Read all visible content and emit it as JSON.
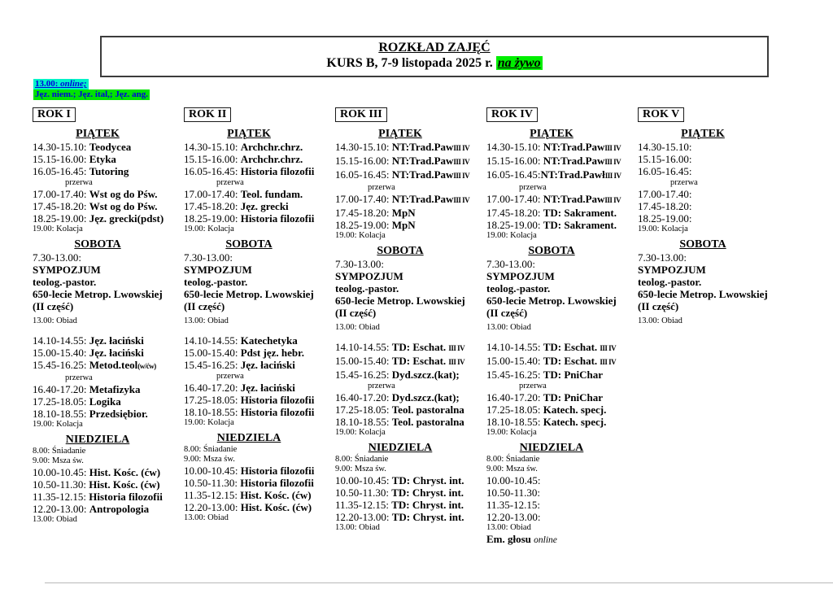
{
  "header": {
    "title": "ROZKŁAD ZAJĘĆ",
    "subtitle": "KURS B, 7-9 listopada 2025 r. ",
    "live_label": "na żywo"
  },
  "note": {
    "time": "13.00: ",
    "online": "online;",
    "languages": "Jęz. niem.; Jęz. ital,; Jęz. ang."
  },
  "columns": [
    {
      "title": "ROK I",
      "sections": [
        {
          "header": "PIĄTEK",
          "lines": [
            {
              "t": "14.30-15.10: ",
              "c": "Teodycea"
            },
            {
              "t": "15.15-16.00: ",
              "c": "Etyka"
            },
            {
              "t": "16.05-16.45: ",
              "c": "Tutoring"
            },
            {
              "brk": "przerwa"
            },
            {
              "t": "17.00-17.40: ",
              "c": "Wst og do Pśw."
            },
            {
              "t": "17.45-18.20: ",
              "c": "Wst og do Pśw."
            },
            {
              "t": "18.25-19.00: ",
              "c": "Jęz. grecki(pdst)"
            },
            {
              "sm": "19.00: Kolacja"
            }
          ]
        },
        {
          "header": "SOBOTA",
          "lines": [
            {
              "plain": "7.30-13.00:"
            },
            {
              "bold": "SYMPOZJUM"
            },
            {
              "bold": "teolog.-pastor."
            },
            {
              "bold": "650-lecie Metrop. Lwowskiej"
            },
            {
              "bold": "(II część)"
            },
            {
              "gap": 1
            },
            {
              "sm": "13.00: Obiad"
            },
            {
              "gap": 2
            },
            {
              "t": "14.10-14.55: ",
              "c": "Jęz. łaciński"
            },
            {
              "t": "15.00-15.40: ",
              "c": "Jęz. łaciński"
            },
            {
              "t": "15.45-16.25: ",
              "c": "Metod.teol",
              "cs": "(w/ćw)"
            },
            {
              "brk": "przerwa"
            },
            {
              "t": "16.40-17.20: ",
              "c": "Metafizyka"
            },
            {
              "t": "17.25-18.05: ",
              "c": "Logika"
            },
            {
              "t": "18.10-18.55: ",
              "c": "Przedsiębior."
            },
            {
              "sm": "19.00: Kolacja"
            }
          ]
        },
        {
          "header": "NIEDZIELA",
          "lines": [
            {
              "sm": "8.00: Śniadanie"
            },
            {
              "sm": "9.00: Msza św."
            },
            {
              "t": "10.00-10.45: ",
              "c": "Hist. Kośc. (ćw)"
            },
            {
              "t": "10.50-11.30: ",
              "c": "Hist. Kośc. (ćw)"
            },
            {
              "t": "11.35-12.15: ",
              "c": "Historia filozofii"
            },
            {
              "t": "12.20-13.00: ",
              "c": "Antropologia"
            },
            {
              "sm": "13.00: Obiad"
            }
          ]
        }
      ]
    },
    {
      "title": "ROK II",
      "sections": [
        {
          "header": "PIĄTEK",
          "lines": [
            {
              "t": "14.30-15.10: ",
              "c": "Archchr.chrz."
            },
            {
              "t": "15.15-16.00: ",
              "c": "Archchr.chrz."
            },
            {
              "t": "16.05-16.45: ",
              "c": "Historia filozofii"
            },
            {
              "brk": "przerwa"
            },
            {
              "t": "17.00-17.40: ",
              "c": "Teol. fundam."
            },
            {
              "t": "17.45-18.20: ",
              "c": "Jęz. grecki"
            },
            {
              "t": "18.25-19.00: ",
              "c": "Historia filozofii"
            },
            {
              "sm": "19.00: Kolacja"
            }
          ]
        },
        {
          "header": "SOBOTA",
          "lines": [
            {
              "plain": "7.30-13.00:"
            },
            {
              "bold": "SYMPOZJUM"
            },
            {
              "bold": "teolog.-pastor."
            },
            {
              "bold": "650-lecie Metrop. Lwowskiej"
            },
            {
              "bold": "(II część)"
            },
            {
              "gap": 1
            },
            {
              "sm": "13.00: Obiad"
            },
            {
              "gap": 2
            },
            {
              "t": "14.10-14.55: ",
              "c": "Katechetyka"
            },
            {
              "t": "15.00-15.40: ",
              "c": "Pdst jęz. hebr."
            },
            {
              "t": "15.45-16.25: ",
              "c": "Jęz. łaciński"
            },
            {
              "brk": "przerwa"
            },
            {
              "t": "16.40-17.20: ",
              "c": "Jęz. łaciński"
            },
            {
              "t": "17.25-18.05: ",
              "c": "Historia filozofii"
            },
            {
              "t": "18.10-18.55: ",
              "c": "Historia filozofii"
            },
            {
              "sm": "19.00: Kolacja"
            }
          ]
        },
        {
          "header": "NIEDZIELA",
          "lines": [
            {
              "sm": "8.00: Śniadanie"
            },
            {
              "sm": "9.00: Msza św."
            },
            {
              "t": "10.00-10.45: ",
              "c": "Historia filozofii"
            },
            {
              "t": "10.50-11.30: ",
              "c": "Historia filozofii"
            },
            {
              "t": "11.35-12.15: ",
              "c": "Hist. Kośc. (ćw)"
            },
            {
              "t": "12.20-13.00: ",
              "c": "Hist. Kośc. (ćw)"
            },
            {
              "sm": "13.00: Obiad"
            }
          ]
        }
      ]
    },
    {
      "title": "ROK III",
      "sections": [
        {
          "header": "PIĄTEK",
          "lines": [
            {
              "t": "14.30-15.10: ",
              "c": "NT:Trad.Paw",
              "cs": "III IV"
            },
            {
              "t": "15.15-16.00: ",
              "c": "NT:Trad.Paw",
              "cs": "III IV"
            },
            {
              "t": "16.05-16.45: ",
              "c": "NT:Trad.Paw",
              "cs": "III IV"
            },
            {
              "brk": "przerwa"
            },
            {
              "t": "17.00-17.40: ",
              "c": "NT:Trad.Paw",
              "cs": "III IV"
            },
            {
              "t": "17.45-18.20: ",
              "c": "MpN"
            },
            {
              "t": "18.25-19.00: ",
              "c": "MpN"
            },
            {
              "sm": "19.00: Kolacja"
            }
          ]
        },
        {
          "header": "SOBOTA",
          "lines": [
            {
              "plain": "7.30-13.00:"
            },
            {
              "bold": "SYMPOZJUM"
            },
            {
              "bold": "teolog.-pastor."
            },
            {
              "bold": "650-lecie Metrop. Lwowskiej"
            },
            {
              "bold": "(II część)"
            },
            {
              "gap": 1
            },
            {
              "sm": "13.00: Obiad"
            },
            {
              "gap": 2
            },
            {
              "t": "14.10-14.55: ",
              "c": "TD: Eschat. ",
              "cs": "III IV"
            },
            {
              "t": "15.00-15.40: ",
              "c": "TD: Eschat. ",
              "cs": "III IV"
            },
            {
              "t": "15.45-16.25: ",
              "c": "Dyd.szcz.(kat);"
            },
            {
              "brk": "przerwa"
            },
            {
              "t": "16.40-17.20: ",
              "c": "Dyd.szcz.(kat);"
            },
            {
              "t": "17.25-18.05: ",
              "c": "Teol. pastoralna"
            },
            {
              "t": "18.10-18.55: ",
              "c": "Teol. pastoralna"
            },
            {
              "sm": "19.00: Kolacja"
            }
          ]
        },
        {
          "header": "NIEDZIELA",
          "lines": [
            {
              "sm": "8.00: Śniadanie"
            },
            {
              "sm": "9.00: Msza św."
            },
            {
              "t": "10.00-10.45: ",
              "c": "TD: Chryst. int."
            },
            {
              "t": "10.50-11.30: ",
              "c": "TD: Chryst. int."
            },
            {
              "t": "11.35-12.15: ",
              "c": "TD: Chryst. int."
            },
            {
              "t": "12.20-13.00: ",
              "c": "TD: Chryst. int."
            },
            {
              "sm": "13.00: Obiad"
            }
          ]
        }
      ]
    },
    {
      "title": "ROK IV",
      "sections": [
        {
          "header": "PIĄTEK",
          "lines": [
            {
              "t": "14.30-15.10: ",
              "c": "NT:Trad.Paw",
              "cs": "III IV"
            },
            {
              "t": "15.15-16.00: ",
              "c": "NT:Trad.Paw",
              "cs": "III IV"
            },
            {
              "t": "16.05-16.45:",
              "c": "NT:Trad.Pawł",
              "cs": "III IV",
              "tight": true
            },
            {
              "brk": "przerwa"
            },
            {
              "t": "17.00-17.40: ",
              "c": "NT:Trad.Paw",
              "cs": "III IV"
            },
            {
              "t": "17.45-18.20: ",
              "c": "TD: Sakrament."
            },
            {
              "t": "18.25-19.00: ",
              "c": "TD: Sakrament."
            },
            {
              "sm": "19.00: Kolacja"
            }
          ]
        },
        {
          "header": "SOBOTA",
          "lines": [
            {
              "plain": "7.30-13.00:"
            },
            {
              "bold": "SYMPOZJUM"
            },
            {
              "bold": "teolog.-pastor."
            },
            {
              "bold": "650-lecie Metrop. Lwowskiej"
            },
            {
              "bold": "(II część)"
            },
            {
              "gap": 1
            },
            {
              "sm": "13.00: Obiad"
            },
            {
              "gap": 2
            },
            {
              "t": "14.10-14.55: ",
              "c": "TD: Eschat. ",
              "cs": "III IV"
            },
            {
              "t": "15.00-15.40: ",
              "c": "TD: Eschat. ",
              "cs": "III IV"
            },
            {
              "t": "15.45-16.25: ",
              "c": "TD: PniChar"
            },
            {
              "brk": "przerwa"
            },
            {
              "t": "16.40-17.20: ",
              "c": "TD: PniChar"
            },
            {
              "t": "17.25-18.05: ",
              "c": "Katech. specj."
            },
            {
              "t": "18.10-18.55: ",
              "c": "Katech. specj."
            },
            {
              "sm": "19.00: Kolacja"
            }
          ]
        },
        {
          "header": "NIEDZIELA",
          "lines": [
            {
              "sm": "8.00: Śniadanie"
            },
            {
              "sm": "9.00: Msza św."
            },
            {
              "t": "10.00-10.45:"
            },
            {
              "t": "10.50-11.30:"
            },
            {
              "t": "11.35-12.15:"
            },
            {
              "t": "12.20-13.00:"
            },
            {
              "sm": "13.00: Obiad"
            },
            {
              "b": "Em. głosu ",
              "i": "online"
            }
          ]
        }
      ]
    },
    {
      "title": "ROK V",
      "sections": [
        {
          "header": "PIĄTEK",
          "lines": [
            {
              "t": "14.30-15.10:"
            },
            {
              "t": "15.15-16.00:"
            },
            {
              "t": "16.05-16.45:"
            },
            {
              "brk": "przerwa"
            },
            {
              "t": "17.00-17.40:"
            },
            {
              "t": "17.45-18.20:"
            },
            {
              "t": "18.25-19.00:"
            },
            {
              "sm": "19.00: Kolacja"
            }
          ]
        },
        {
          "header": "SOBOTA",
          "lines": [
            {
              "plain": "7.30-13.00:"
            },
            {
              "bold": "SYMPOZJUM"
            },
            {
              "bold": "teolog.-pastor."
            },
            {
              "bold": "650-lecie Metrop. Lwowskiej"
            },
            {
              "bold": "(II część)"
            },
            {
              "gap": 1
            },
            {
              "sm": "13.00: Obiad"
            }
          ]
        }
      ]
    }
  ],
  "colors": {
    "highlight_green": "#00ee00",
    "note_highlight_cyan": "#00f2c8",
    "note_text_blue": "#0000dd"
  }
}
